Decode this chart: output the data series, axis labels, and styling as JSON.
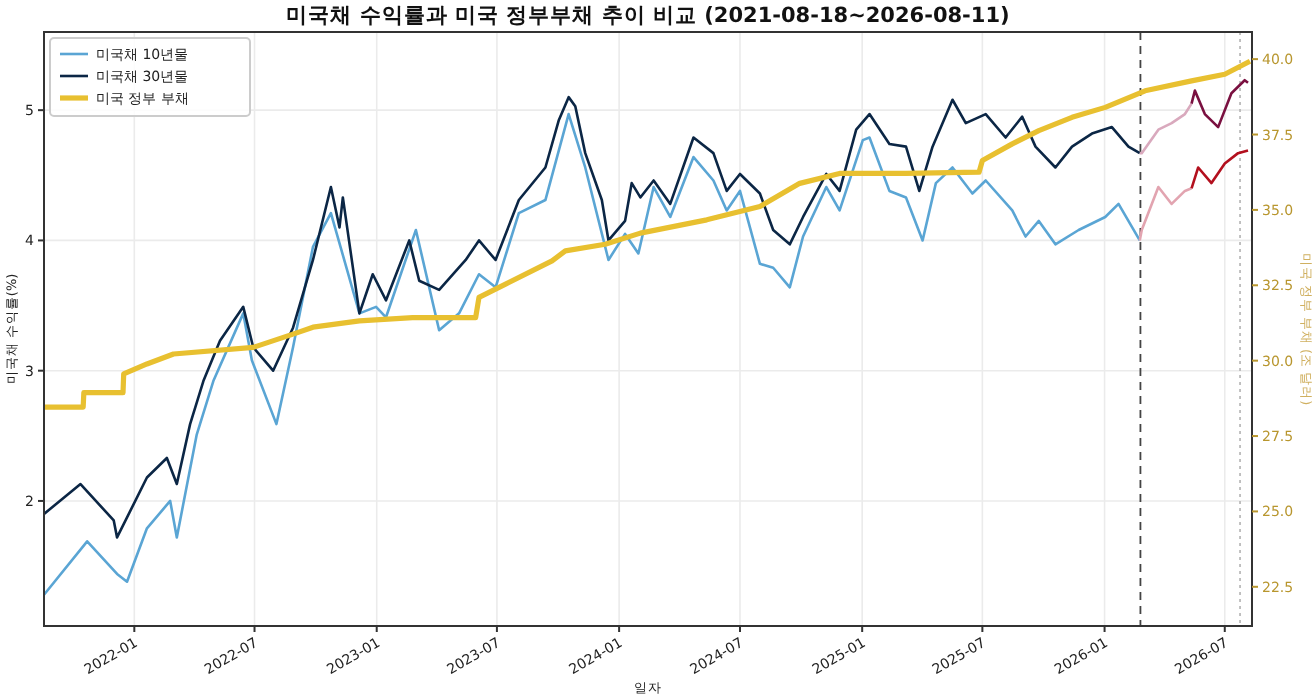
{
  "chart_data": {
    "type": "line",
    "title": "미국채 수익률과 미국 정부부채 추이 비교 (2021-08-18~2026-08-11)",
    "xlabel": "일자",
    "ylabel": "미국채 수익률(%)",
    "y2label": "미국 정부 부채 (조 달러)",
    "xlim": [
      "2021-08-18",
      "2026-08-11"
    ],
    "xticks": [
      {
        "value": "2022-01-01",
        "label": "2022-01"
      },
      {
        "value": "2022-07-01",
        "label": "2022-07"
      },
      {
        "value": "2023-01-01",
        "label": "2023-01"
      },
      {
        "value": "2023-07-01",
        "label": "2023-07"
      },
      {
        "value": "2024-01-01",
        "label": "2024-01"
      },
      {
        "value": "2024-07-01",
        "label": "2024-07"
      },
      {
        "value": "2025-01-01",
        "label": "2025-01"
      },
      {
        "value": "2025-07-01",
        "label": "2025-07"
      },
      {
        "value": "2026-01-01",
        "label": "2026-01"
      },
      {
        "value": "2026-07-01",
        "label": "2026-07"
      }
    ],
    "ylim": [
      1.04,
      5.6
    ],
    "yticks": [
      2,
      3,
      4,
      5
    ],
    "y2lim": [
      21.2,
      40.9
    ],
    "y2ticks": [
      {
        "value": 22.5,
        "label": "22.5"
      },
      {
        "value": 25,
        "label": "25.0"
      },
      {
        "value": 27.5,
        "label": "27.5"
      },
      {
        "value": 30,
        "label": "30.0"
      },
      {
        "value": 32.5,
        "label": "32.5"
      },
      {
        "value": 35,
        "label": "35.0"
      },
      {
        "value": 37.5,
        "label": "37.5"
      },
      {
        "value": 40,
        "label": "40.0"
      }
    ],
    "grid": true,
    "legend": "top left",
    "ref_lines": [
      {
        "axis": "x",
        "value": "2026-02-24",
        "color": "#444444",
        "line_style": "dashed"
      },
      {
        "axis": "x",
        "value": "2026-07-24",
        "color": "#bbbbbb",
        "line_style": "dotted"
      }
    ],
    "series": [
      {
        "name": "미국채 10년물",
        "color": "#5aa5d4",
        "x": [
          "2021-08-18",
          "2021-10-22",
          "2021-12-06",
          "2021-12-21",
          "2022-01-20",
          "2022-02-24",
          "2022-03-06",
          "2022-04-05",
          "2022-04-30",
          "2022-06-14",
          "2022-06-27",
          "2022-08-03",
          "2022-08-28",
          "2022-09-27",
          "2022-10-24",
          "2022-12-06",
          "2022-12-31",
          "2023-01-15",
          "2023-03-01",
          "2023-04-05",
          "2023-05-05",
          "2023-06-04",
          "2023-06-29",
          "2023-08-03",
          "2023-09-12",
          "2023-10-17",
          "2023-11-11",
          "2023-12-16",
          "2024-01-10",
          "2024-01-30",
          "2024-02-22",
          "2024-03-18",
          "2024-04-22",
          "2024-05-22",
          "2024-06-11",
          "2024-07-01",
          "2024-07-31",
          "2024-08-20",
          "2024-09-14",
          "2024-10-04",
          "2024-11-08",
          "2024-11-28",
          "2025-01-02",
          "2025-01-12",
          "2025-02-11",
          "2025-03-08",
          "2025-04-02",
          "2025-04-22",
          "2025-05-17",
          "2025-06-16",
          "2025-07-06",
          "2025-08-15",
          "2025-09-04",
          "2025-09-24",
          "2025-10-19",
          "2025-11-23",
          "2026-01-02",
          "2026-01-22",
          "2026-02-23"
        ],
        "values": [
          1.28,
          1.69,
          1.44,
          1.38,
          1.79,
          2.0,
          1.72,
          2.51,
          2.92,
          3.44,
          3.08,
          2.59,
          3.18,
          3.95,
          4.21,
          3.44,
          3.49,
          3.41,
          4.08,
          3.31,
          3.44,
          3.74,
          3.64,
          4.21,
          4.31,
          4.97,
          4.56,
          3.85,
          4.05,
          3.9,
          4.41,
          4.18,
          4.64,
          4.46,
          4.23,
          4.38,
          3.82,
          3.79,
          3.64,
          4.03,
          4.41,
          4.23,
          4.77,
          4.79,
          4.38,
          4.33,
          4.0,
          4.44,
          4.56,
          4.36,
          4.46,
          4.23,
          4.03,
          4.15,
          3.97,
          4.08,
          4.18,
          4.28,
          4.0
        ]
      },
      {
        "name": "미국채 30년물",
        "color": "#0b2645",
        "x": [
          "2021-08-18",
          "2021-10-12",
          "2021-12-01",
          "2021-12-06",
          "2022-01-20",
          "2022-02-19",
          "2022-03-06",
          "2022-03-26",
          "2022-04-15",
          "2022-05-10",
          "2022-06-14",
          "2022-06-29",
          "2022-07-29",
          "2022-08-28",
          "2022-09-27",
          "2022-10-24",
          "2022-11-06",
          "2022-11-11",
          "2022-12-06",
          "2022-12-26",
          "2023-01-15",
          "2023-02-19",
          "2023-03-06",
          "2023-04-05",
          "2023-05-15",
          "2023-06-04",
          "2023-06-29",
          "2023-08-03",
          "2023-09-12",
          "2023-10-02",
          "2023-10-17",
          "2023-10-27",
          "2023-11-11",
          "2023-12-06",
          "2023-12-16",
          "2024-01-10",
          "2024-01-20",
          "2024-02-02",
          "2024-02-22",
          "2024-03-18",
          "2024-04-22",
          "2024-05-22",
          "2024-06-11",
          "2024-07-01",
          "2024-07-31",
          "2024-08-20",
          "2024-09-14",
          "2024-10-04",
          "2024-11-08",
          "2024-11-28",
          "2024-12-23",
          "2025-01-12",
          "2025-02-11",
          "2025-03-08",
          "2025-03-28",
          "2025-04-17",
          "2025-05-17",
          "2025-06-06",
          "2025-07-06",
          "2025-08-05",
          "2025-08-30",
          "2025-09-19",
          "2025-10-19",
          "2025-11-13",
          "2025-12-13",
          "2026-01-12",
          "2026-02-06",
          "2026-02-23"
        ],
        "values": [
          1.9,
          2.13,
          1.85,
          1.72,
          2.18,
          2.33,
          2.13,
          2.59,
          2.92,
          3.23,
          3.49,
          3.18,
          3.0,
          3.33,
          3.85,
          4.41,
          4.1,
          4.33,
          3.44,
          3.74,
          3.54,
          4.0,
          3.69,
          3.62,
          3.85,
          4.0,
          3.85,
          4.31,
          4.56,
          4.92,
          5.1,
          5.03,
          4.67,
          4.31,
          4.0,
          4.15,
          4.44,
          4.33,
          4.46,
          4.28,
          4.79,
          4.67,
          4.38,
          4.51,
          4.36,
          4.08,
          3.97,
          4.18,
          4.51,
          4.38,
          4.85,
          4.97,
          4.74,
          4.72,
          4.38,
          4.72,
          5.08,
          4.9,
          4.97,
          4.79,
          4.95,
          4.72,
          4.56,
          4.72,
          4.82,
          4.87,
          4.72,
          4.67
        ]
      },
      {
        "name": "미국 정부 부채",
        "color": "#e8c030",
        "axis": "y2",
        "x": [
          "2021-08-18",
          "2021-10-16",
          "2021-10-17",
          "2021-12-15",
          "2021-12-16",
          "2022-01-20",
          "2022-03-01",
          "2022-06-29",
          "2022-08-28",
          "2022-09-27",
          "2022-12-06",
          "2023-02-24",
          "2023-05-30",
          "2023-06-04",
          "2023-07-14",
          "2023-09-22",
          "2023-10-12",
          "2023-12-11",
          "2024-02-02",
          "2024-05-12",
          "2024-07-31",
          "2024-09-29",
          "2024-11-28",
          "2025-03-08",
          "2025-06-26",
          "2025-07-01",
          "2025-08-15",
          "2025-09-24",
          "2025-11-13",
          "2026-01-02",
          "2026-03-03",
          "2026-05-12",
          "2026-07-01",
          "2026-08-08"
        ],
        "values": [
          28.46,
          28.46,
          28.94,
          28.94,
          29.56,
          29.89,
          30.22,
          30.44,
          30.88,
          31.11,
          31.32,
          31.43,
          31.43,
          32.1,
          32.54,
          33.31,
          33.64,
          33.86,
          34.23,
          34.67,
          35.11,
          35.88,
          36.21,
          36.21,
          36.25,
          36.64,
          37.19,
          37.63,
          38.07,
          38.4,
          38.95,
          39.28,
          39.5,
          39.93
        ]
      },
      {
        "color": "#e2a4b0",
        "x": [
          "2026-02-23",
          "2026-02-26",
          "2026-03-23",
          "2026-04-12",
          "2026-05-02",
          "2026-05-12"
        ],
        "values": [
          4.0,
          4.08,
          4.41,
          4.28,
          4.38,
          4.4
        ]
      },
      {
        "color": "#b3101e",
        "x": [
          "2026-05-12",
          "2026-05-22",
          "2026-06-11",
          "2026-07-01",
          "2026-07-21",
          "2026-08-05"
        ],
        "values": [
          4.4,
          4.56,
          4.44,
          4.59,
          4.67,
          4.69
        ]
      },
      {
        "color": "#d9a9bd",
        "x": [
          "2026-02-23",
          "2026-02-26",
          "2026-03-23",
          "2026-04-12",
          "2026-05-02",
          "2026-05-12"
        ],
        "values": [
          4.67,
          4.67,
          4.85,
          4.9,
          4.97,
          5.05
        ]
      },
      {
        "color": "#7a1040",
        "x": [
          "2026-05-12",
          "2026-05-17",
          "2026-06-01",
          "2026-06-21",
          "2026-07-11",
          "2026-07-31",
          "2026-08-05"
        ],
        "values": [
          5.05,
          5.15,
          4.97,
          4.87,
          5.13,
          5.23,
          5.21
        ]
      }
    ]
  }
}
